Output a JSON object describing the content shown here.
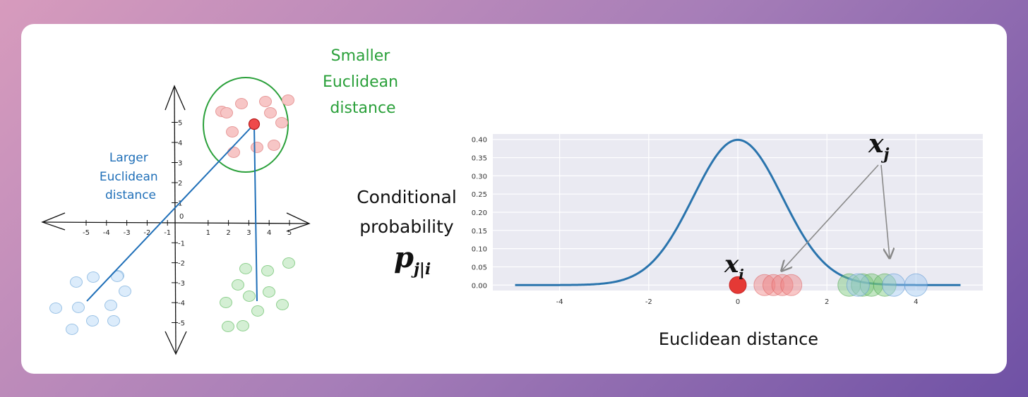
{
  "left_diagram": {
    "x_ticks": [
      "-5",
      "-4",
      "-3",
      "-2",
      "-1",
      "0",
      "1",
      "2",
      "3",
      "4",
      "5"
    ],
    "y_ticks_pos": [
      "5",
      "4",
      "3",
      "2",
      "1"
    ],
    "y_ticks_neg": [
      "-1",
      "-2",
      "-3",
      "-4",
      "-5"
    ],
    "origin_label": "0",
    "smaller_label": [
      "Smaller",
      "Euclidean",
      "distance"
    ],
    "larger_label": [
      "Larger",
      "Euclidean",
      "distance"
    ],
    "colors": {
      "green": "#2aa03a",
      "blue": "#1f6fb8",
      "red": "#e53935"
    }
  },
  "middle_label": {
    "line1": "Conditional",
    "line2": "probability",
    "math_base": "p",
    "math_sub": "j|i"
  },
  "chart_data": {
    "type": "line",
    "series": [
      {
        "name": "",
        "function": "gaussian",
        "mean": 0,
        "std": 1
      }
    ],
    "x_range": [
      -5,
      5
    ],
    "xlim": [
      -5.5,
      5.5
    ],
    "ylim": [
      -0.015,
      0.415
    ],
    "x_ticks": [
      -4,
      -2,
      0,
      2,
      4
    ],
    "y_ticks": [
      0.0,
      0.05,
      0.1,
      0.15,
      0.2,
      0.25,
      0.3,
      0.35,
      0.4
    ],
    "y_tick_labels": [
      "0.00",
      "0.05",
      "0.10",
      "0.15",
      "0.20",
      "0.25",
      "0.30",
      "0.35",
      "0.40"
    ],
    "grid": true,
    "xlabel": "Euclidean distance",
    "points": {
      "xi": {
        "x": 0,
        "color": "#e53935"
      },
      "red": [
        0.6,
        0.8,
        1.0,
        1.2
      ],
      "green": [
        2.5,
        2.8,
        3.0,
        3.3
      ],
      "blue": [
        2.7,
        3.5,
        4.0
      ]
    },
    "annotations": {
      "xi_label_base": "x",
      "xi_label_sub": "i",
      "xj_label_base": "x",
      "xj_label_sub": "j"
    },
    "line_color": "#2a74ad",
    "plot_bg": "#eaeaf2"
  }
}
